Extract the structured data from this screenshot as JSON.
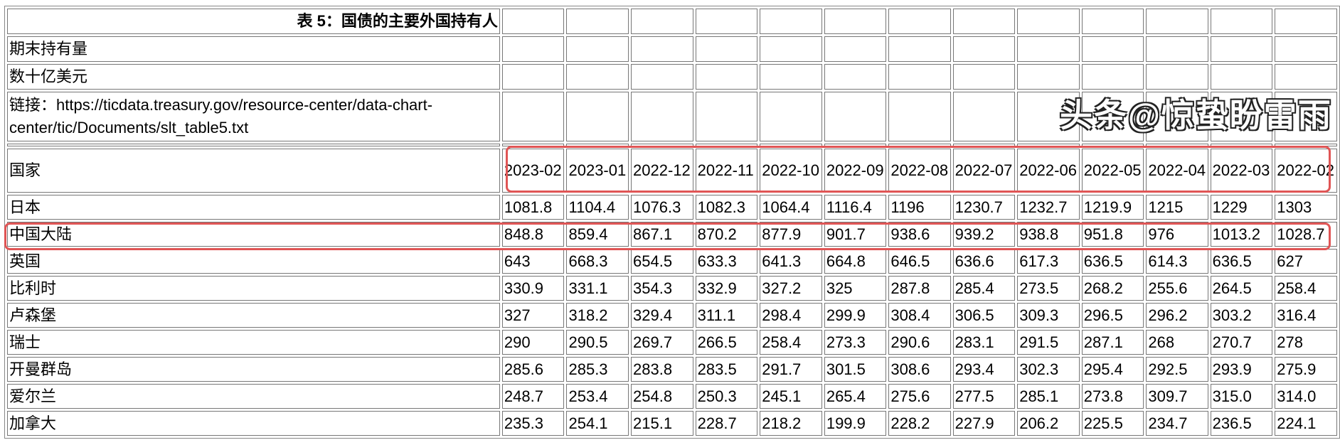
{
  "table": {
    "title": "表 5：国债的主要外国持有人",
    "subtitle1": "期末持有量",
    "subtitle2": "数十亿美元",
    "link": "链接：https://ticdata.treasury.gov/resource-center/data-chart-center/tic/Documents/slt_table5.txt",
    "country_header": "国家",
    "dates": [
      "2023-02",
      "2023-01",
      "2022-12",
      "2022-11",
      "2022-10",
      "2022-09",
      "2022-08",
      "2022-07",
      "2022-06",
      "2022-05",
      "2022-04",
      "2022-03",
      "2022-02"
    ],
    "rows": [
      {
        "country": "日本",
        "values": [
          "1081.8",
          "1104.4",
          "1076.3",
          "1082.3",
          "1064.4",
          "1116.4",
          "1196",
          "1230.7",
          "1232.7",
          "1219.9",
          "1215",
          "1229",
          "1303"
        ]
      },
      {
        "country": "中国大陆",
        "values": [
          "848.8",
          "859.4",
          "867.1",
          "870.2",
          "877.9",
          "901.7",
          "938.6",
          "939.2",
          "938.8",
          "951.8",
          "976",
          "1013.2",
          "1028.7"
        ],
        "highlighted": true
      },
      {
        "country": "英国",
        "values": [
          "643",
          "668.3",
          "654.5",
          "633.3",
          "641.3",
          "664.8",
          "646.5",
          "636.6",
          "617.3",
          "636.5",
          "614.3",
          "636.5",
          "627"
        ]
      },
      {
        "country": "比利时",
        "values": [
          "330.9",
          "331.1",
          "354.3",
          "332.9",
          "327.2",
          "325",
          "287.8",
          "285.4",
          "273.5",
          "268.2",
          "255.6",
          "264.5",
          "258.4"
        ]
      },
      {
        "country": "卢森堡",
        "values": [
          "327",
          "318.2",
          "329.4",
          "311.1",
          "298.4",
          "299.9",
          "308.4",
          "306.5",
          "309.3",
          "296.5",
          "296.2",
          "303.2",
          "316.4"
        ]
      },
      {
        "country": "瑞士",
        "values": [
          "290",
          "290.5",
          "269.7",
          "266.5",
          "258.4",
          "273.3",
          "290.6",
          "283.1",
          "291.5",
          "287.1",
          "268",
          "270.7",
          "278"
        ]
      },
      {
        "country": "开曼群岛",
        "values": [
          "285.6",
          "285.3",
          "283.8",
          "283.5",
          "291.7",
          "301.5",
          "308.6",
          "293.4",
          "302.3",
          "295.4",
          "292.5",
          "293.9",
          "275.9"
        ]
      },
      {
        "country": "爱尔兰",
        "values": [
          "248.7",
          "253.4",
          "254.8",
          "250.3",
          "245.1",
          "265.4",
          "275.6",
          "277.5",
          "285.1",
          "273.8",
          "309.7",
          "315.0",
          "314.0"
        ]
      },
      {
        "country": "加拿大",
        "values": [
          "235.3",
          "254.1",
          "215.1",
          "228.7",
          "218.2",
          "199.9",
          "228.2",
          "227.9",
          "206.2",
          "225.5",
          "234.7",
          "236.5",
          "224.1"
        ]
      }
    ]
  },
  "highlight_color": "#e05555",
  "watermark": "头条@惊蛰盼雷雨"
}
